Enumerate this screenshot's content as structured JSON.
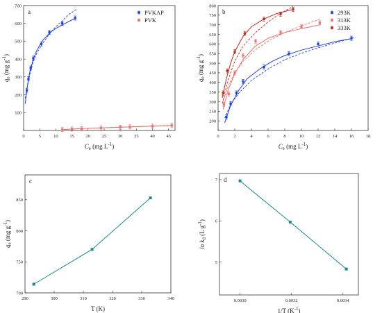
{
  "chart_data": [
    {
      "panel": "a",
      "type": "scatter",
      "xlabel": "C_e (mg L^-1)",
      "ylabel": "q_e (mg g^-1)",
      "xlim": [
        0,
        47
      ],
      "ylim": [
        0,
        700
      ],
      "xticks": [
        0,
        5,
        10,
        15,
        20,
        25,
        30,
        35,
        40,
        45
      ],
      "yticks": [
        100,
        200,
        300,
        400,
        500,
        600,
        700
      ],
      "legend_position": "top-right",
      "series": [
        {
          "name": "PVKAP",
          "color": "#1f3fe0",
          "x": [
            1.0,
            1.5,
            2.2,
            3.0,
            5.5,
            8.0,
            12.0,
            16.0
          ],
          "y": [
            225,
            290,
            350,
            405,
            485,
            550,
            600,
            630
          ],
          "fit_langmuir": [
            [
              0.5,
              150
            ],
            [
              1,
              225
            ],
            [
              1.5,
              290
            ],
            [
              2,
              335
            ],
            [
              3,
              400
            ],
            [
              4,
              445
            ],
            [
              5,
              478
            ],
            [
              6,
              505
            ],
            [
              8,
              545
            ],
            [
              10,
              572
            ],
            [
              12,
              592
            ],
            [
              14,
              610
            ],
            [
              16,
              628
            ]
          ],
          "fit_freundlich": [
            [
              0.5,
              180
            ],
            [
              1,
              230
            ],
            [
              2,
              320
            ],
            [
              3,
              385
            ],
            [
              4,
              430
            ],
            [
              6,
              490
            ],
            [
              8,
              540
            ],
            [
              10,
              582
            ],
            [
              12,
              615
            ],
            [
              14,
              650
            ],
            [
              16.5,
              680
            ]
          ]
        },
        {
          "name": "PVK",
          "color": "#e97070",
          "x": [
            12,
            15,
            18,
            24,
            30,
            33,
            40,
            46
          ],
          "y": [
            5,
            8,
            10,
            14,
            18,
            20,
            24,
            28
          ],
          "fit_langmuir": [
            [
              12,
              5
            ],
            [
              20,
              12
            ],
            [
              30,
              18
            ],
            [
              40,
              24
            ],
            [
              46,
              27
            ]
          ],
          "fit_freundlich": [
            [
              12,
              6
            ],
            [
              20,
              12
            ],
            [
              30,
              19
            ],
            [
              40,
              25
            ],
            [
              46,
              29
            ]
          ]
        }
      ]
    },
    {
      "panel": "b",
      "type": "scatter",
      "xlabel": "C_e (mg L^-1)",
      "ylabel": "q_e (mg g^-1)",
      "xlim": [
        0,
        18
      ],
      "ylim": [
        150,
        800
      ],
      "xticks": [
        0,
        2,
        4,
        6,
        8,
        10,
        12,
        14,
        16,
        18
      ],
      "yticks": [
        200,
        250,
        300,
        350,
        400,
        450,
        500,
        550,
        600,
        650,
        700,
        750,
        800
      ],
      "legend_position": "top-right",
      "series": [
        {
          "name": "293K",
          "color": "#1f3fe0",
          "x": [
            1.0,
            1.5,
            2.2,
            3.0,
            5.5,
            8.5,
            12.0,
            16.0
          ],
          "y": [
            220,
            290,
            345,
            405,
            480,
            550,
            600,
            630
          ],
          "fit_langmuir": [
            [
              0.8,
              190
            ],
            [
              1.5,
              280
            ],
            [
              2.5,
              360
            ],
            [
              3.5,
              420
            ],
            [
              5,
              470
            ],
            [
              6.5,
              510
            ],
            [
              8,
              540
            ],
            [
              10,
              568
            ],
            [
              12,
              590
            ],
            [
              14,
              612
            ],
            [
              16,
              628
            ]
          ],
          "fit_freundlich": [
            [
              0.8,
              215
            ],
            [
              1.5,
              285
            ],
            [
              2.5,
              345
            ],
            [
              4,
              410
            ],
            [
              6,
              470
            ],
            [
              8,
              518
            ],
            [
              10,
              552
            ],
            [
              12,
              580
            ],
            [
              14,
              605
            ],
            [
              16.5,
              635
            ]
          ]
        },
        {
          "name": "313K",
          "color": "#e97070",
          "x": [
            0.7,
            1.3,
            2.0,
            3.0,
            4.5,
            7.5,
            10.0,
            12.2
          ],
          "y": [
            285,
            340,
            450,
            540,
            615,
            660,
            690,
            710
          ],
          "fit_langmuir": [
            [
              0.6,
              260
            ],
            [
              1.2,
              360
            ],
            [
              2,
              445
            ],
            [
              3,
              520
            ],
            [
              4.5,
              590
            ],
            [
              6,
              630
            ],
            [
              8,
              660
            ],
            [
              10,
              680
            ],
            [
              12.2,
              700
            ]
          ],
          "fit_freundlich": [
            [
              0.6,
              300
            ],
            [
              1.2,
              380
            ],
            [
              2,
              450
            ],
            [
              3,
              510
            ],
            [
              4.5,
              570
            ],
            [
              6,
              615
            ],
            [
              8,
              660
            ],
            [
              10,
              695
            ],
            [
              12.3,
              730
            ]
          ]
        },
        {
          "name": "333K",
          "color": "#c0281c",
          "x": [
            0.6,
            1.1,
            2.0,
            3.2,
            5.5,
            7.5,
            9.0
          ],
          "y": [
            345,
            460,
            560,
            655,
            730,
            755,
            780
          ],
          "fit_langmuir": [
            [
              0.5,
              320
            ],
            [
              1,
              420
            ],
            [
              1.5,
              500
            ],
            [
              2,
              560
            ],
            [
              3,
              640
            ],
            [
              4,
              690
            ],
            [
              5.5,
              730
            ],
            [
              7,
              758
            ],
            [
              9,
              780
            ]
          ],
          "fit_freundlich": [
            [
              0.5,
              290
            ],
            [
              1,
              380
            ],
            [
              1.5,
              450
            ],
            [
              2,
              510
            ],
            [
              3,
              590
            ],
            [
              4.5,
              660
            ],
            [
              6,
              715
            ],
            [
              7.5,
              760
            ],
            [
              9,
              795
            ]
          ]
        }
      ]
    },
    {
      "panel": "c",
      "type": "line",
      "xlabel": "T (K)",
      "ylabel": "q_e (mg g^-1)",
      "xlim": [
        290,
        340
      ],
      "ylim": [
        700,
        890
      ],
      "xticks": [
        290,
        300,
        310,
        320,
        330,
        340
      ],
      "yticks": [
        700,
        750,
        800,
        850
      ],
      "series": [
        {
          "color": "#1a8a82",
          "x": [
            293,
            313,
            333
          ],
          "y": [
            714,
            770,
            853
          ]
        }
      ]
    },
    {
      "panel": "d",
      "type": "line",
      "xlabel": "1/T (K^-1)",
      "ylabel": "ln k_d (L g^-1)",
      "xlim": [
        0.00292,
        0.00346
      ],
      "ylim": [
        4.2,
        7.15
      ],
      "xticks": [
        0.003,
        0.0032,
        0.0034
      ],
      "xticklabels": [
        "0.0030",
        "0.0032",
        "0.0034"
      ],
      "yticks": [
        5,
        6,
        7
      ],
      "series": [
        {
          "color": "#1a8a82",
          "x": [
            0.003,
            0.003195,
            0.003413
          ],
          "y": [
            6.97,
            5.97,
            4.83
          ]
        }
      ]
    }
  ]
}
